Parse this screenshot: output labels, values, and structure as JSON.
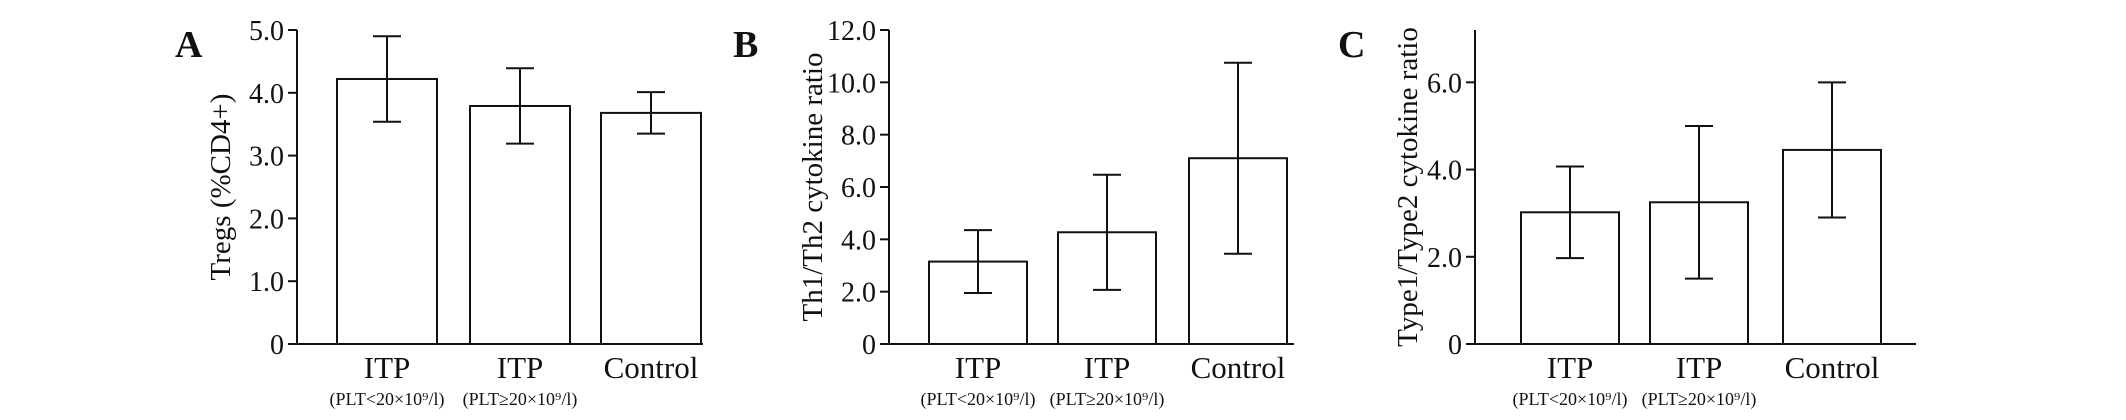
{
  "chart_data": [
    {
      "type": "bar",
      "panel": "A",
      "title": "",
      "xlabel": "",
      "ylabel": "Tregs (%CD4+)",
      "ylim": [
        0,
        5.0
      ],
      "yticks": [
        "0",
        "1.0",
        "2.0",
        "3.0",
        "4.0",
        "5.0"
      ],
      "categories": [
        "ITP",
        "ITP",
        "Control"
      ],
      "category_subtitles": [
        "(PLT<20×10⁹/l)",
        "(PLT≥20×10⁹/l)",
        ""
      ],
      "values": [
        4.22,
        3.79,
        3.68
      ],
      "error": [
        0.68,
        0.6,
        0.33
      ],
      "grid": false,
      "legend": "none"
    },
    {
      "type": "bar",
      "panel": "B",
      "title": "",
      "xlabel": "",
      "ylabel": "Th1/Th2 cytokine ratio",
      "ylim": [
        0,
        12.0
      ],
      "yticks": [
        "0",
        "2.0",
        "4.0",
        "6.0",
        "8.0",
        "10.0",
        "12.0"
      ],
      "categories": [
        "ITP",
        "ITP",
        "Control"
      ],
      "category_subtitles": [
        "(PLT<20×10⁹/l)",
        "(PLT≥20×10⁹/l)",
        ""
      ],
      "values": [
        3.15,
        4.27,
        7.1
      ],
      "error": [
        1.2,
        2.2,
        3.65
      ],
      "grid": false,
      "legend": "none"
    },
    {
      "type": "bar",
      "panel": "C",
      "title": "",
      "xlabel": "",
      "ylabel": "Type1/Type2 cytokine ratio",
      "ylim": [
        0,
        7.2
      ],
      "yticks": [
        "0",
        "2.0",
        "4.0",
        "6.0"
      ],
      "categories": [
        "ITP",
        "ITP",
        "Control"
      ],
      "category_subtitles": [
        "(PLT<20×10⁹/l)",
        "(PLT≥20×10⁹/l)",
        ""
      ],
      "values": [
        3.02,
        3.25,
        4.45
      ],
      "error": [
        1.05,
        1.75,
        1.55
      ],
      "grid": false,
      "legend": "none"
    }
  ]
}
